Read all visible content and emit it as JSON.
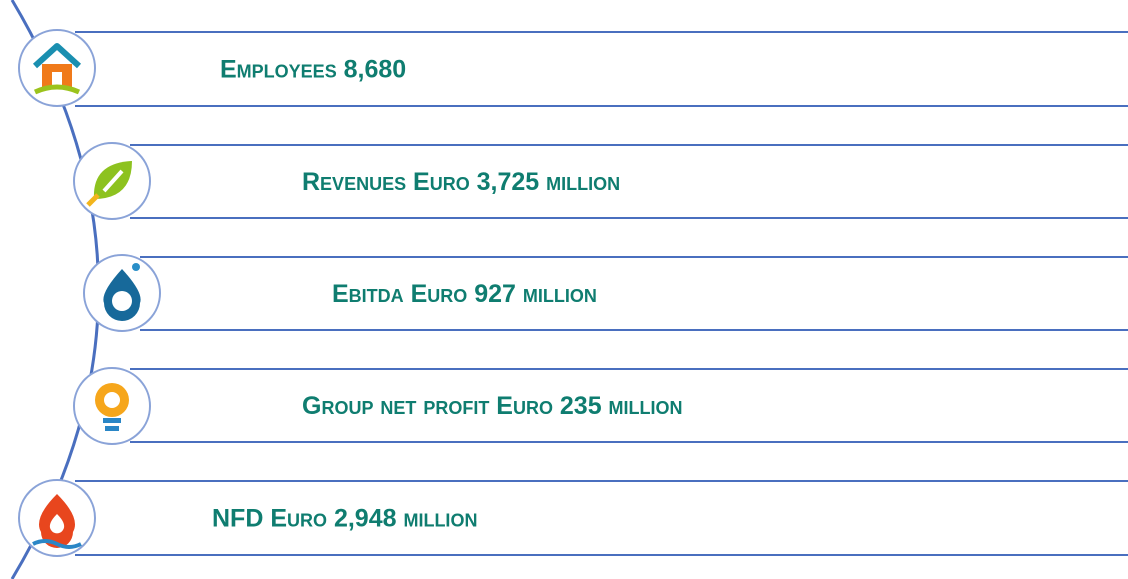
{
  "items": [
    {
      "label": "Employees 8,680"
    },
    {
      "label": "Revenues Euro 3,725 million"
    },
    {
      "label": "Ebitda Euro 927 million"
    },
    {
      "label": "Group net profit Euro 235 million"
    },
    {
      "label": "NFD Euro 2,948 million"
    }
  ]
}
